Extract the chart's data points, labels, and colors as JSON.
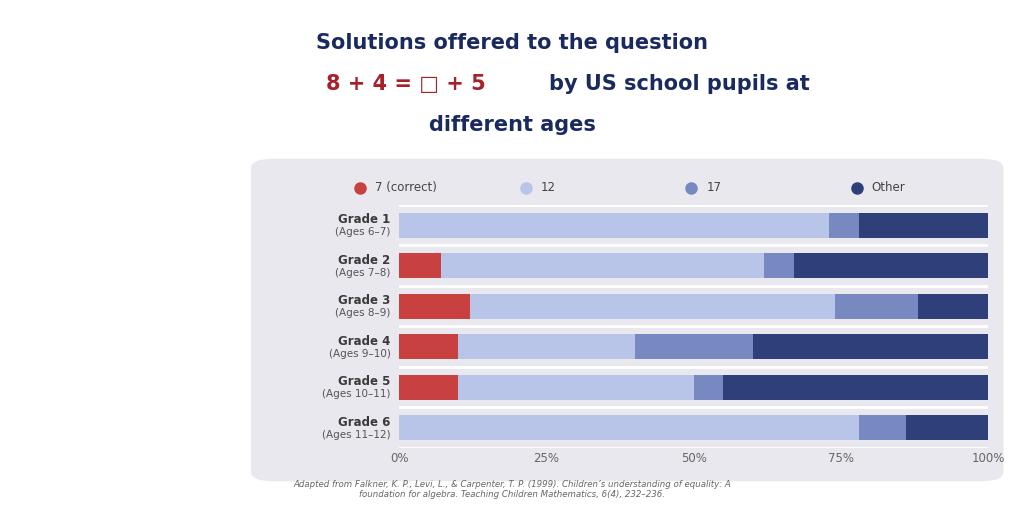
{
  "title_line1": "Solutions offered to the question",
  "title_line2_red": "8 + 4 = □ + 5 ",
  "title_line2_blue": "by US school pupils at",
  "title_line3": "different ages",
  "title_color": "#1a2a5e",
  "title_highlight_color": "#a8202a",
  "categories": [
    [
      "Grade 1",
      "(Ages 6–7)"
    ],
    [
      "Grade 2",
      "(Ages 7–8)"
    ],
    [
      "Grade 3",
      "(Ages 8–9)"
    ],
    [
      "Grade 4",
      "(Ages 9–10)"
    ],
    [
      "Grade 5",
      "(Ages 10–11)"
    ],
    [
      "Grade 6",
      "(Ages 11–12)"
    ]
  ],
  "series_names": [
    "7 (correct)",
    "12",
    "17",
    "Other"
  ],
  "series": {
    "7 (correct)": [
      0,
      7,
      12,
      10,
      10,
      0
    ],
    "12": [
      73,
      55,
      62,
      30,
      40,
      78
    ],
    "17": [
      5,
      5,
      14,
      20,
      5,
      8
    ],
    "Other": [
      22,
      33,
      12,
      40,
      45,
      14
    ]
  },
  "colors": {
    "7 (correct)": "#c94040",
    "12": "#b8c4e8",
    "17": "#7888c0",
    "Other": "#2e3f7a"
  },
  "panel_bg": "#e8e8ee",
  "bar_bg": "#f0f0f5",
  "xtick_labels": [
    "0%",
    "25%",
    "50%",
    "75%",
    "100%"
  ],
  "xtick_values": [
    0,
    25,
    50,
    75,
    100
  ],
  "footnote": "Adapted from Falkner, K. P., Levi, L., & Carpenter, T. P. (1999). Children’s understanding of equality: A\nfoundation for algebra. Teaching Children Mathematics, 6(4), 232–236."
}
